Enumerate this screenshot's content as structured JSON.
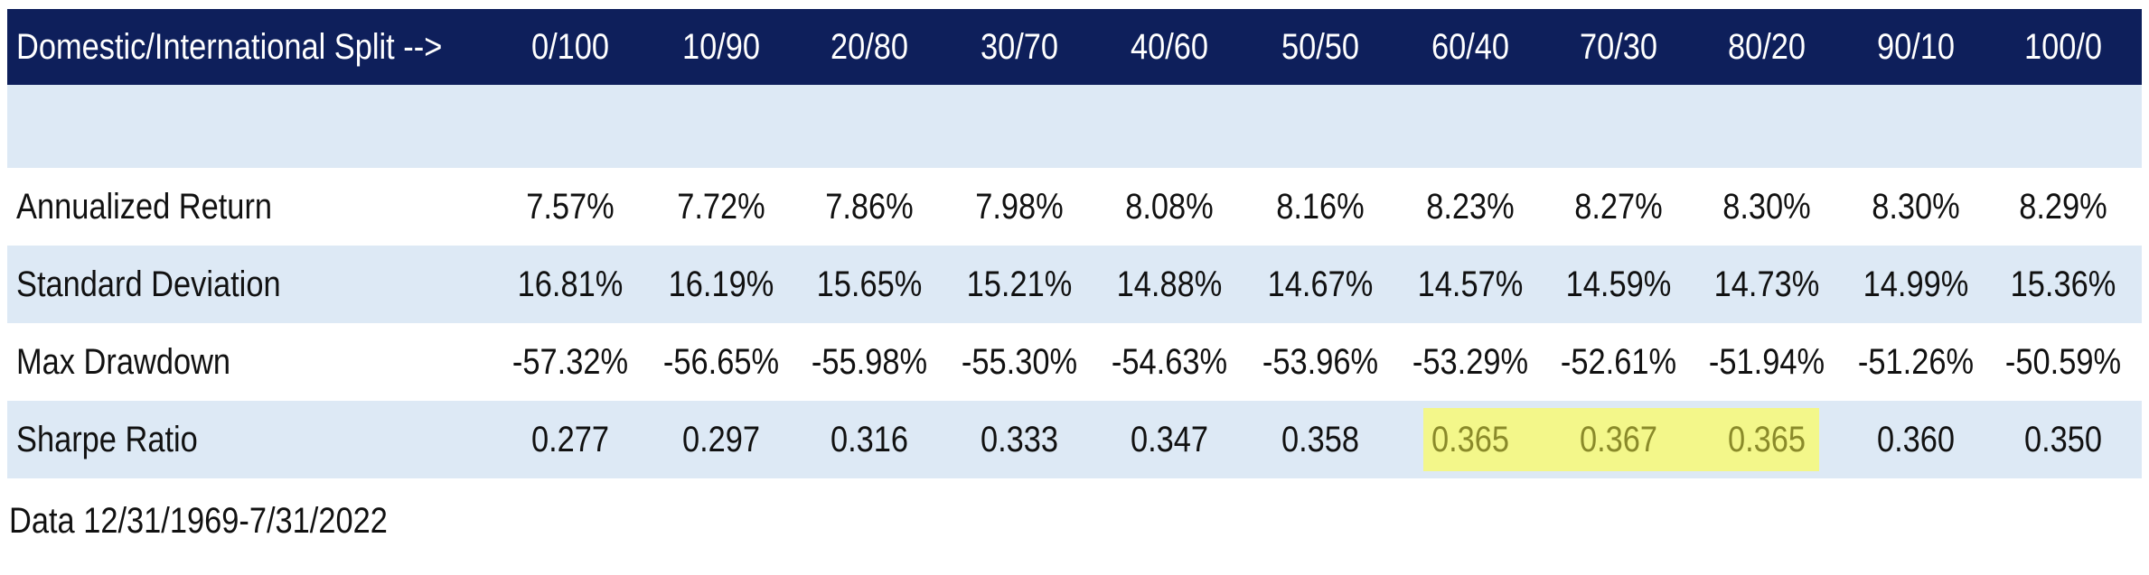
{
  "chart_data": {
    "type": "table",
    "corner_label": "Domestic/International Split -->",
    "columns": [
      "0/100",
      "10/90",
      "20/80",
      "30/70",
      "40/60",
      "50/50",
      "60/40",
      "70/30",
      "80/20",
      "90/10",
      "100/0"
    ],
    "rows": [
      {
        "label": "Annualized Return",
        "values": [
          "7.57%",
          "7.72%",
          "7.86%",
          "7.98%",
          "8.08%",
          "8.16%",
          "8.23%",
          "8.27%",
          "8.30%",
          "8.30%",
          "8.29%"
        ]
      },
      {
        "label": "Standard Deviation",
        "values": [
          "16.81%",
          "16.19%",
          "15.65%",
          "15.21%",
          "14.88%",
          "14.67%",
          "14.57%",
          "14.59%",
          "14.73%",
          "14.99%",
          "15.36%"
        ]
      },
      {
        "label": "Max Drawdown",
        "values": [
          "-57.32%",
          "-56.65%",
          "-55.98%",
          "-55.30%",
          "-54.63%",
          "-53.96%",
          "-53.29%",
          "-52.61%",
          "-51.94%",
          "-51.26%",
          "-50.59%"
        ]
      },
      {
        "label": "Sharpe Ratio",
        "values": [
          "0.277",
          "0.297",
          "0.316",
          "0.333",
          "0.347",
          "0.358",
          "0.365",
          "0.367",
          "0.365",
          "0.360",
          "0.350"
        ],
        "highlighted_columns": [
          6,
          7,
          8
        ]
      }
    ],
    "footnote": "Data 12/31/1969-7/31/2022",
    "colors": {
      "header_bg": "#0e1f5b",
      "band_bg": "#dde9f5",
      "highlight": "#f3f78a",
      "highlight_text": "#8a8a2a"
    }
  }
}
